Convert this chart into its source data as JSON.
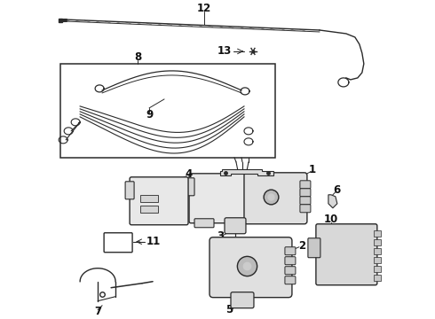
{
  "background_color": "#ffffff",
  "line_color": "#2a2a2a",
  "label_color": "#111111",
  "font_size_label": 8.5,
  "figsize": [
    4.9,
    3.6
  ],
  "dpi": 100
}
